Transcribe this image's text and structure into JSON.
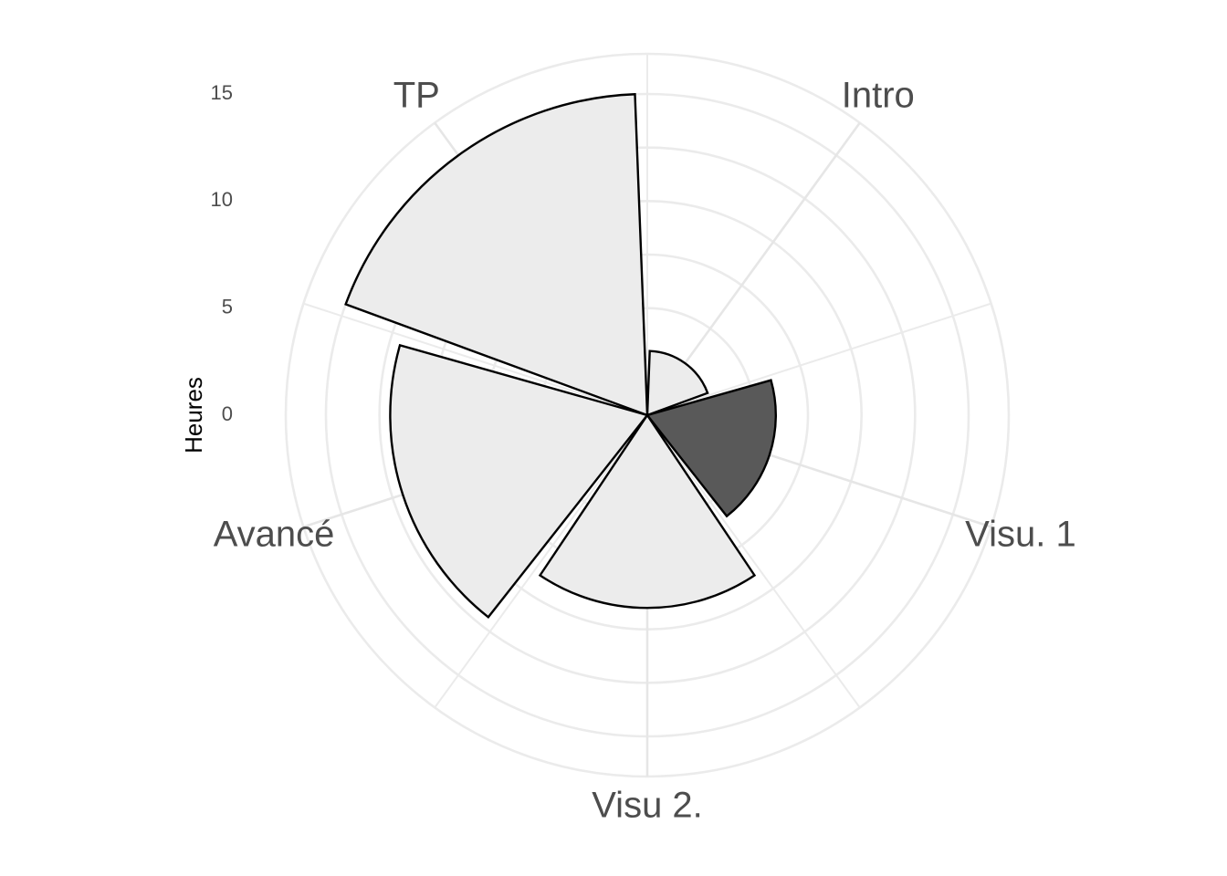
{
  "chart_data": {
    "type": "bar",
    "coord": "polar",
    "categories": [
      "Intro",
      "Visu. 1",
      "Visu 2.",
      "Avancé",
      "TP"
    ],
    "values": [
      3,
      6,
      9,
      12,
      15
    ],
    "highlight": "Visu. 1",
    "fill_default": "#ececec",
    "fill_highlight": "#595959",
    "ylabel": "Heures",
    "ylim": [
      0,
      15
    ],
    "yticks": [
      0,
      5,
      10,
      15
    ]
  }
}
